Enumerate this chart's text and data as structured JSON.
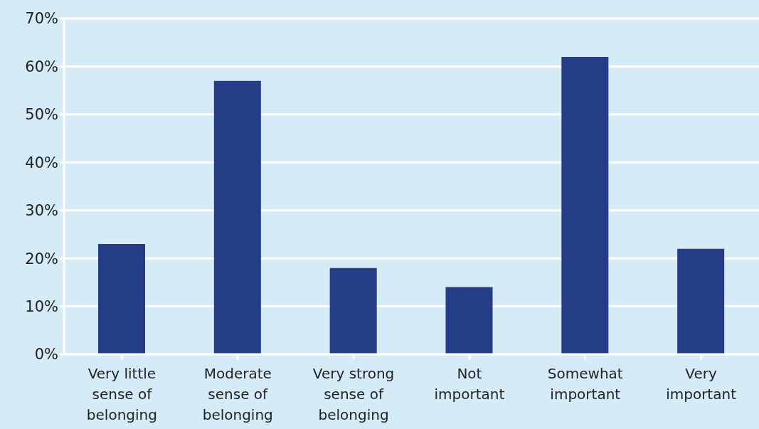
{
  "chart_data": {
    "type": "bar",
    "categories": [
      "Very little sense of belonging",
      "Moderate sense of belonging",
      "Very strong sense of belonging",
      "Not important",
      "Somewhat important",
      "Very important"
    ],
    "values": [
      23,
      57,
      18,
      14,
      62,
      22
    ],
    "color": "#253c87",
    "ylim": [
      0,
      70
    ],
    "yticks": [
      {
        "value": 0,
        "label": "0%"
      },
      {
        "value": 10,
        "label": "10%"
      },
      {
        "value": 20,
        "label": "20%"
      },
      {
        "value": 30,
        "label": "30%"
      },
      {
        "value": 40,
        "label": "40%"
      },
      {
        "value": 50,
        "label": "50%"
      },
      {
        "value": 60,
        "label": "60%"
      },
      {
        "value": 70,
        "label": "70%"
      }
    ],
    "grid": "y"
  }
}
